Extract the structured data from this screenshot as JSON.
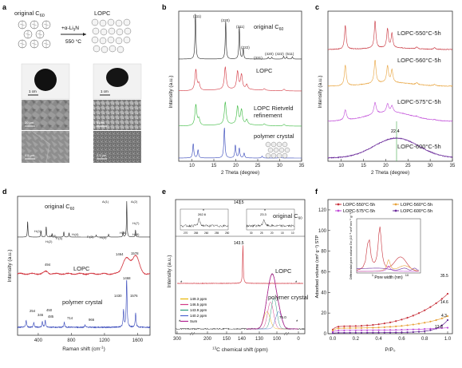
{
  "panels": {
    "a": {
      "letter": "a",
      "label_original": "original C",
      "label_original_sub": "60",
      "label_lopc": "LOPC",
      "reaction_reagent": "+α-Li",
      "reaction_reagent_sub": "3",
      "reaction_reagent_tail": "N",
      "reaction_temp": "550 °C",
      "scale_1": "1 cm",
      "scale_2": "1 cm",
      "scale_3": "20 μm",
      "scale_4": "5 μm",
      "scale_5": "0.5 μm",
      "scale_6": "0.5 μm"
    },
    "b": {
      "letter": "b",
      "ylabel": "Intensity (a.u.)",
      "xlabel": "2 Theta (degree)",
      "xticks": [
        "10",
        "15",
        "20",
        "25",
        "30",
        "35"
      ],
      "traces": [
        "original C60",
        "LOPC",
        "LOPC Rietveld refinement",
        "polymer crystal"
      ],
      "label_original": "original C",
      "label_original_sub": "60",
      "label_lopc": "LOPC",
      "label_riet1": "LOPC Rietveld",
      "label_riet2": "refinement",
      "label_poly": "polymer crystal",
      "peaks": [
        "(111)",
        "(220)",
        "(311)",
        "(222)",
        "(331)",
        "(420)",
        "(422)",
        "(511)"
      ]
    },
    "c": {
      "letter": "c",
      "ylabel": "Intensity (a.u.)",
      "xlabel": "2 Theta (degree)",
      "xticks": [
        "10",
        "15",
        "20",
        "25",
        "30",
        "35"
      ],
      "traces": [
        "LOPC-550°C-5h",
        "LOPC-560°C-5h",
        "LOPC-575°C-5h",
        "LOPC-600°C-5h"
      ],
      "marker": "22.4"
    },
    "d": {
      "letter": "d",
      "ylabel": "Intensity (a.u.)",
      "xlabel_pre": "Raman shift (cm",
      "xlabel_sup": "-1",
      "xlabel_post": ")",
      "xticks": [
        "400",
        "800",
        "1200",
        "1600"
      ],
      "label_original": "original C",
      "label_original_sub": "60",
      "label_lopc": "LOPC",
      "label_poly": "polymer crystal",
      "modes": [
        "Hₗ(1)",
        "Aₗ(1)",
        "Aₗ(2)",
        "Hₗ(2)",
        "Fₗ(4)",
        "Hₗ(4)",
        "Fₗ(2)",
        "Hₗ(3)",
        "Hₗ(5)",
        "Hₗ(6)",
        "Hₗ(7)",
        "Hₗ(8)"
      ],
      "lopc_peaks": [
        "494",
        "1464",
        "1578"
      ],
      "poly_peaks": [
        "254",
        "346",
        "450",
        "485",
        "714",
        "966",
        "1430",
        "1468",
        "1576"
      ]
    },
    "e": {
      "letter": "e",
      "xlabel_pre": "",
      "xlabel_sup": "13",
      "xlabel_post": "C chemical shift (ppm)",
      "ylabel": "Intensity (a.u.)",
      "xticks": [
        "300",
        "200",
        "150",
        "140",
        "130",
        "100",
        "0"
      ],
      "top_peak": "143.5",
      "inset_peak1": "262.6",
      "inset_peak2": "23.3",
      "inset_ticks1": [
        "270",
        "265",
        "260",
        "255",
        "250"
      ],
      "inset_ticks2": [
        "30",
        "25",
        "20",
        "15",
        "10"
      ],
      "label_original": "original C",
      "label_original_sub": "60",
      "mid_peak": "143.5",
      "label_lopc": "LOPC",
      "label_poly": "polymer crystal",
      "legend": [
        "149.3 ppm",
        "146.5 ppm",
        "143.9 ppm",
        "140.2 ppm",
        "Sum"
      ],
      "legend_colors": [
        "#e8b400",
        "#d23a86",
        "#2a9a7a",
        "#4a63d0",
        "#b02090"
      ],
      "side_peak": "76.0"
    },
    "f": {
      "letter": "f",
      "ylabel": "Adsorbed volume (cm³ g⁻¹) STP",
      "xlabel": "P/P₀",
      "yticks": [
        "0",
        "20",
        "40",
        "60",
        "80",
        "100",
        "120"
      ],
      "xticks": [
        "0.0",
        "0.2",
        "0.4",
        "0.6",
        "0.8",
        "1.0"
      ],
      "legend": [
        "LOPC-550°C-5h",
        "LOPC-560°C-5h",
        "LOPC-575°C-5h",
        "LOPC-600°C-5h"
      ],
      "legend_colors": [
        "#c8323c",
        "#e8a23a",
        "#c04ad8",
        "#6a2a9a"
      ],
      "end_values": [
        "35.5",
        "14.6",
        "4.3",
        "12.8"
      ],
      "inset_ylabel": "Differential pore volume Dv (10⁻³ cm³ nm⁻¹ g⁻¹)",
      "inset_xlabel": "Pore width (nm)",
      "inset_xticks": [
        "1",
        "10"
      ]
    }
  },
  "colors": {
    "black": "#222222",
    "red": "#d2323c",
    "green": "#35b83a",
    "blue": "#3042b8",
    "orange": "#e8a23a",
    "magenta": "#c04ad8",
    "purple": "#6a2a9a"
  }
}
